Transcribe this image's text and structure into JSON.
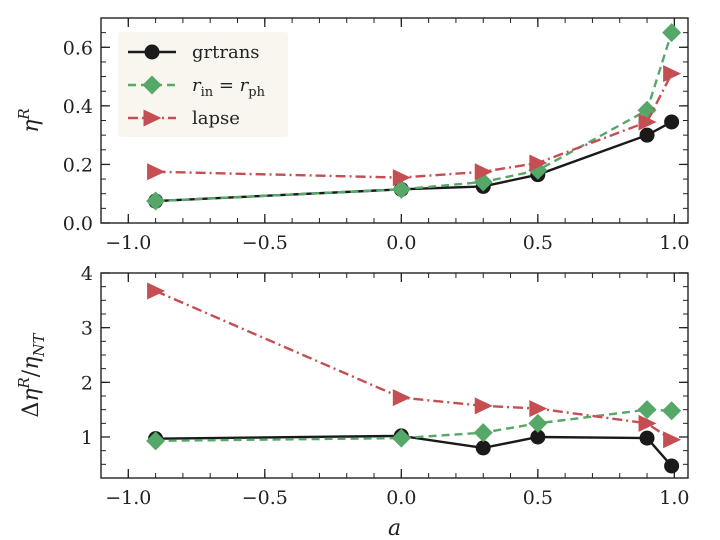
{
  "chart_data": [
    {
      "type": "line",
      "x": [
        -0.9,
        0.0,
        0.3,
        0.5,
        0.9,
        0.99
      ],
      "xlim": [
        -1.1,
        1.05
      ],
      "ylim": [
        0.0,
        0.7
      ],
      "xticks": [
        -1.0,
        -0.5,
        0.0,
        0.5,
        1.0
      ],
      "xtick_labels": [
        "−1.0",
        "−0.5",
        "0.0",
        "0.5",
        "1.0"
      ],
      "yticks": [
        0.0,
        0.2,
        0.4,
        0.6
      ],
      "ytick_labels": [
        "0.0",
        "0.2",
        "0.4",
        "0.6"
      ],
      "xlabel": "",
      "ylabel": "η^R",
      "legend_position": "top-left",
      "series": [
        {
          "name": "grtrans",
          "color": "#1a1a1a",
          "dash": "solid",
          "marker": "circle",
          "values": [
            0.075,
            0.115,
            0.125,
            0.165,
            0.3,
            0.345
          ]
        },
        {
          "name": "r_in = r_ph",
          "color": "#55a868",
          "dash": "dashed",
          "marker": "diamond",
          "values": [
            0.075,
            0.115,
            0.14,
            0.18,
            0.385,
            0.65
          ]
        },
        {
          "name": "lapse",
          "color": "#c44e52",
          "dash": "dashdot",
          "marker": "triangle-right",
          "values": [
            0.175,
            0.155,
            0.175,
            0.205,
            0.345,
            0.51
          ]
        }
      ]
    },
    {
      "type": "line",
      "x": [
        -0.9,
        0.0,
        0.3,
        0.5,
        0.9,
        0.99
      ],
      "xlim": [
        -1.1,
        1.05
      ],
      "ylim": [
        0.25,
        4.0
      ],
      "xticks": [
        -1.0,
        -0.5,
        0.0,
        0.5,
        1.0
      ],
      "xtick_labels": [
        "−1.0",
        "−0.5",
        "0.0",
        "0.5",
        "1.0"
      ],
      "yticks": [
        1,
        2,
        3,
        4
      ],
      "ytick_labels": [
        "1",
        "2",
        "3",
        "4"
      ],
      "xlabel": "a",
      "ylabel": "Δη^R/η_NT",
      "series": [
        {
          "name": "grtrans",
          "color": "#1a1a1a",
          "dash": "solid",
          "marker": "circle",
          "values": [
            0.97,
            1.02,
            0.8,
            1.0,
            0.98,
            0.47
          ]
        },
        {
          "name": "r_in = r_ph",
          "color": "#55a868",
          "dash": "dashed",
          "marker": "diamond",
          "values": [
            0.93,
            0.98,
            1.08,
            1.25,
            1.5,
            1.48
          ]
        },
        {
          "name": "lapse",
          "color": "#c44e52",
          "dash": "dashdot",
          "marker": "triangle-right",
          "values": [
            3.67,
            1.72,
            1.57,
            1.52,
            1.25,
            0.95
          ]
        }
      ]
    }
  ]
}
